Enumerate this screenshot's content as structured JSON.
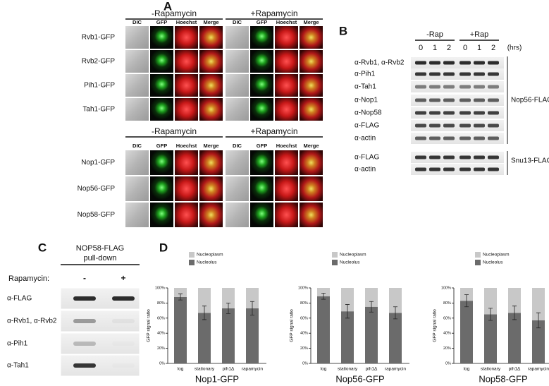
{
  "panel_a": {
    "label": "A",
    "groups": [
      {
        "conditions": [
          "-Rapamycin",
          "+Rapamycin"
        ],
        "columns": [
          "DIC",
          "GFP",
          "Hoechst",
          "Merge"
        ],
        "rows": [
          "Rvb1-GFP",
          "Rvb2-GFP",
          "Pih1-GFP",
          "Tah1-GFP"
        ]
      },
      {
        "conditions": [
          "-Rapamycin",
          "+Rapamycin"
        ],
        "columns": [
          "DIC",
          "GFP",
          "Hoechst",
          "Merge"
        ],
        "rows": [
          "Nop1-GFP",
          "Nop56-GFP",
          "Nop58-GFP"
        ]
      }
    ]
  },
  "panel_b": {
    "label": "B",
    "conditions": [
      "-Rap",
      "+Rap"
    ],
    "timepoints": [
      "0",
      "1",
      "2",
      "0",
      "1",
      "2"
    ],
    "unit": "(hrs)",
    "blots": [
      "α-Rvb1, α-Rvb2",
      "α-Pih1",
      "α-Tah1",
      "α-Nop1",
      "α-Nop58",
      "α-FLAG",
      "α-actin"
    ],
    "group": "Nop56-FLAG",
    "blots2": [
      "α-FLAG",
      "α-actin"
    ],
    "group2": "Snu13-FLAG"
  },
  "panel_c": {
    "label": "C",
    "title": [
      "NOP58-FLAG",
      "pull-down"
    ],
    "treatment": "Rapamycin:",
    "conditions": [
      "-",
      "+"
    ],
    "blots": [
      "α-FLAG",
      "α-Rvb1, α-Rvb2",
      "α-Pih1",
      "α-Tah1"
    ]
  },
  "panel_d": {
    "label": "D",
    "charts": [
      {
        "type": "bar",
        "title": "Nop1-GFP",
        "ylabel": "GFP signal ratio",
        "categories": [
          "log",
          "stationary",
          "pih1Δ",
          "rapamycin"
        ],
        "series": [
          {
            "name": "Nucleolus",
            "color": "#6b6b6b",
            "values": [
              88,
              67,
              73,
              73
            ],
            "errors": [
              4,
              9,
              7,
              9
            ]
          },
          {
            "name": "Nucleoplasm",
            "color": "#c8c8c8",
            "values": [
              12,
              33,
              27,
              27
            ]
          }
        ],
        "ylim": [
          0,
          100
        ],
        "yticks": [
          {
            "value": 0,
            "label": "0%"
          },
          {
            "value": 20,
            "label": "20%"
          },
          {
            "value": 40,
            "label": "40%"
          },
          {
            "value": 60,
            "label": "60%"
          },
          {
            "value": 80,
            "label": "80%"
          },
          {
            "value": 100,
            "label": "100%"
          }
        ]
      },
      {
        "type": "bar",
        "title": "Nop56-GFP",
        "ylabel": "GFP signal ratio",
        "categories": [
          "log",
          "stationary",
          "pih1Δ",
          "rapamycin"
        ],
        "series": [
          {
            "name": "Nucleolus",
            "color": "#6b6b6b",
            "values": [
              89,
              69,
              75,
              67
            ],
            "errors": [
              4,
              9,
              7,
              8
            ]
          },
          {
            "name": "Nucleoplasm",
            "color": "#c8c8c8",
            "values": [
              11,
              31,
              25,
              33
            ]
          }
        ],
        "ylim": [
          0,
          100
        ],
        "yticks": [
          {
            "value": 0,
            "label": "0%"
          },
          {
            "value": 20,
            "label": "20%"
          },
          {
            "value": 40,
            "label": "40%"
          },
          {
            "value": 60,
            "label": "60%"
          },
          {
            "value": 80,
            "label": "80%"
          },
          {
            "value": 100,
            "label": "100%"
          }
        ]
      },
      {
        "type": "bar",
        "title": "Nop58-GFP",
        "ylabel": "GFP signal ratio",
        "categories": [
          "log",
          "stationary",
          "pih1Δ",
          "rapamycin"
        ],
        "series": [
          {
            "name": "Nucleolus",
            "color": "#6b6b6b",
            "values": [
              83,
              65,
              67,
              57
            ],
            "errors": [
              8,
              8,
              9,
              10
            ]
          },
          {
            "name": "Nucleoplasm",
            "color": "#c8c8c8",
            "values": [
              17,
              35,
              33,
              43
            ]
          }
        ],
        "ylim": [
          0,
          100
        ],
        "yticks": [
          {
            "value": 0,
            "label": "0%"
          },
          {
            "value": 20,
            "label": "20%"
          },
          {
            "value": 40,
            "label": "40%"
          },
          {
            "value": 60,
            "label": "60%"
          },
          {
            "value": 80,
            "label": "80%"
          },
          {
            "value": 100,
            "label": "100%"
          }
        ]
      }
    ]
  }
}
